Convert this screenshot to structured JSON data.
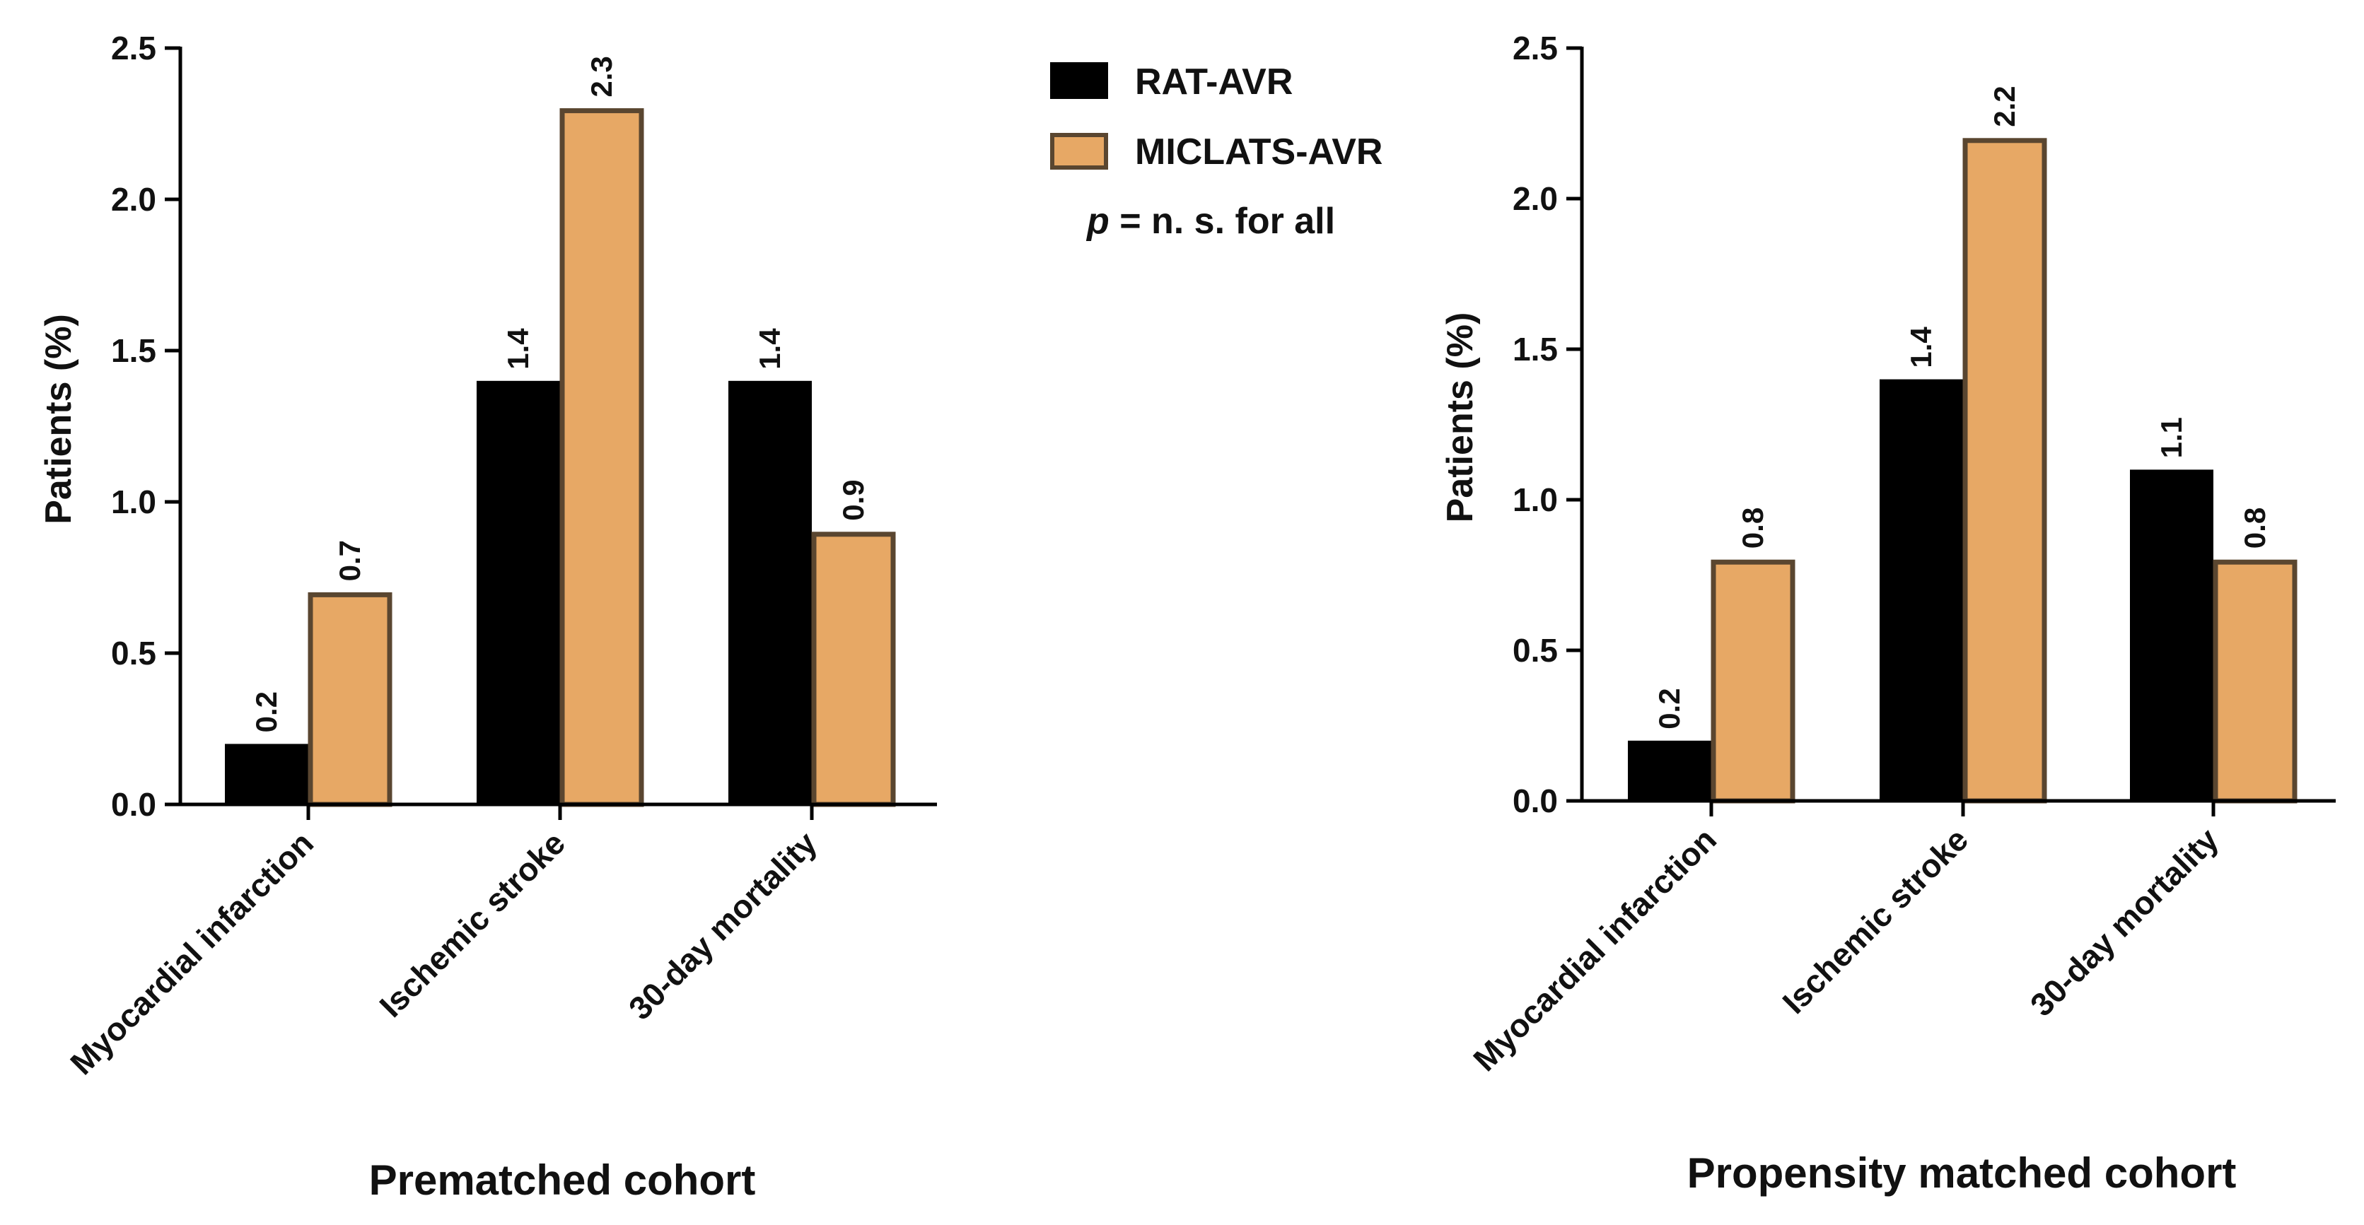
{
  "colors": {
    "rat": "#000000",
    "miclats": "#E7A865",
    "miclats_border": "#5A4630",
    "axis": "#000000"
  },
  "legend": {
    "items": [
      {
        "label": "RAT-AVR",
        "series": 0
      },
      {
        "label": "MICLATS-AVR",
        "series": 1
      }
    ],
    "note_italic": "p",
    "note_rest": " = n. s. for all"
  },
  "chart_data": [
    {
      "type": "bar",
      "title": "Prematched cohort",
      "ylabel": "Patients (%)",
      "xlabel": "",
      "ylim": [
        0,
        2.5
      ],
      "yticks": [
        "0.0",
        "0.5",
        "1.0",
        "1.5",
        "2.0",
        "2.5"
      ],
      "ytick_values": [
        0,
        0.5,
        1.0,
        1.5,
        2.0,
        2.5
      ],
      "categories": [
        "Myocardial infarction",
        "Ischemic stroke",
        "30-day mortality"
      ],
      "series": [
        {
          "name": "RAT-AVR",
          "values": [
            0.2,
            1.4,
            1.4
          ],
          "labels": [
            "0.2",
            "1.4",
            "1.4"
          ]
        },
        {
          "name": "MICLATS-AVR",
          "values": [
            0.7,
            2.3,
            0.9
          ],
          "labels": [
            "0.7",
            "2.3",
            "0.9"
          ]
        }
      ]
    },
    {
      "type": "bar",
      "title": "Propensity matched cohort",
      "ylabel": "Patients (%)",
      "xlabel": "",
      "ylim": [
        0,
        2.5
      ],
      "yticks": [
        "0.0",
        "0.5",
        "1.0",
        "1.5",
        "2.0",
        "2.5"
      ],
      "ytick_values": [
        0,
        0.5,
        1.0,
        1.5,
        2.0,
        2.5
      ],
      "categories": [
        "Myocardial infarction",
        "Ischemic stroke",
        "30-day mortality"
      ],
      "series": [
        {
          "name": "RAT-AVR",
          "values": [
            0.2,
            1.4,
            1.1
          ],
          "labels": [
            "0.2",
            "1.4",
            "1.1"
          ]
        },
        {
          "name": "MICLATS-AVR",
          "values": [
            0.8,
            2.2,
            0.8
          ],
          "labels": [
            "0.8",
            "2.2",
            "0.8"
          ]
        }
      ]
    }
  ]
}
